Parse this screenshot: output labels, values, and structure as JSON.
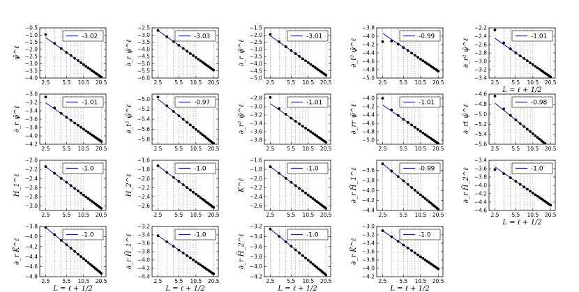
{
  "figure": {
    "xlabel": "L = ℓ + 1/2",
    "legend_position": "upper-right",
    "colors": {
      "fit_line": "#1a1acc",
      "points": "#000000",
      "grid": "#555555"
    },
    "xticks": [
      2.5,
      5.5,
      10.5,
      20.5
    ],
    "vgrid_x": [
      2.5,
      3.5,
      4.5,
      5.5,
      6.5,
      7.5,
      8.5,
      9.5,
      10.5,
      20.5
    ],
    "x_scale": "log"
  },
  "chart_data": [
    {
      "type": "scatter",
      "ylabel": "ψ̄^ℓ",
      "legend": "-3.02",
      "ylim": [
        -4.0,
        -0.5
      ],
      "yticks": [
        -0.5,
        -1.0,
        -1.5,
        -2.0,
        -2.5,
        -3.0,
        -3.5,
        -4.0
      ],
      "ytick_labels": [
        "−0.5",
        "−1.0",
        "−1.5",
        "−2.0",
        "−2.5",
        "−3.0",
        "−3.5",
        "−4.0"
      ],
      "intercept": -1.18,
      "offset": 0.22,
      "decay": 1.6,
      "slope": -3.02,
      "xlabel_shown": false
    },
    {
      "type": "scatter",
      "ylabel": "∂_r ψ̄^ℓ",
      "legend": "-3.03",
      "ylim": [
        -6.0,
        -2.5
      ],
      "yticks": [
        -2.5,
        -3.0,
        -3.5,
        -4.0,
        -4.5,
        -5.0,
        -5.5,
        -6.0
      ],
      "ytick_labels": [
        "−2.5",
        "−3.0",
        "−3.5",
        "−4.0",
        "−4.5",
        "−5.0",
        "−5.5",
        "−6.0"
      ],
      "intercept": -2.68,
      "offset": 0.0,
      "decay": 1.6,
      "slope": -3.03,
      "xlabel_shown": false
    },
    {
      "type": "scatter",
      "ylabel": "∂_r ψ̄^ℓ",
      "legend": "-3.01",
      "ylim": [
        -5.0,
        -1.5
      ],
      "yticks": [
        -1.5,
        -2.0,
        -2.5,
        -3.0,
        -3.5,
        -4.0,
        -4.5,
        -5.0
      ],
      "ytick_labels": [
        "−1.5",
        "−2.0",
        "−2.5",
        "−3.0",
        "−3.5",
        "−4.0",
        "−4.5",
        "−5.0"
      ],
      "intercept": -2.05,
      "offset": 0.1,
      "decay": 1.6,
      "slope": -3.01,
      "xlabel_shown": false
    },
    {
      "type": "scatter",
      "ylabel": "∂_t² ψ̄^ℓ",
      "legend": "-0.99",
      "ylim": [
        -5.0,
        -3.8
      ],
      "yticks": [
        -3.8,
        -4.0,
        -4.2,
        -4.4,
        -4.6,
        -4.8,
        -5.0
      ],
      "ytick_labels": [
        "−3.8",
        "−4.0",
        "−4.2",
        "−4.4",
        "−4.6",
        "−4.8",
        "−5.0"
      ],
      "intercept": -3.93,
      "offset": -0.2,
      "decay": 1.6,
      "slope": -0.99,
      "xlabel_shown": false
    },
    {
      "type": "scatter",
      "ylabel": "∂_r² ψ̄^ℓ",
      "legend": "-1.01",
      "ylim": [
        -3.4,
        -2.2
      ],
      "yticks": [
        -2.2,
        -2.4,
        -2.6,
        -2.8,
        -3.0,
        -3.2,
        -3.4
      ],
      "ytick_labels": [
        "−2.2",
        "−2.4",
        "−2.6",
        "−2.8",
        "−3.0",
        "−3.2",
        "−3.4"
      ],
      "intercept": -2.45,
      "offset": 0.2,
      "decay": 1.6,
      "slope": -1.01,
      "xlabel_shown": true
    },
    {
      "type": "scatter",
      "ylabel": "∂_r ψ̄^ℓ",
      "legend": "-1.01",
      "ylim": [
        -4.2,
        -3.0
      ],
      "yticks": [
        -3.0,
        -3.2,
        -3.4,
        -3.6,
        -3.8,
        -4.0,
        -4.2
      ],
      "ytick_labels": [
        "−3.0",
        "−3.2",
        "−3.4",
        "−3.6",
        "−3.8",
        "−4.0",
        "−4.2"
      ],
      "intercept": -3.21,
      "offset": 0.14,
      "decay": 1.6,
      "slope": -1.01,
      "xlabel_shown": false
    },
    {
      "type": "scatter",
      "ylabel": "∂_t² ψ̄^ℓ",
      "legend": "-0.97",
      "ylim": [
        -5.9,
        -4.9
      ],
      "yticks": [
        -5.0,
        -5.2,
        -5.4,
        -5.6,
        -5.8
      ],
      "ytick_labels": [
        "−5.0",
        "−5.2",
        "−5.4",
        "−5.6",
        "−5.8"
      ],
      "intercept": -5.0,
      "offset": 0.04,
      "decay": 1.6,
      "slope": -0.97,
      "xlabel_shown": false
    },
    {
      "type": "scatter",
      "ylabel": "∂_r² ψ̄^ℓ",
      "legend": "-1.01",
      "ylim": [
        -3.9,
        -2.7
      ],
      "yticks": [
        -2.8,
        -3.0,
        -3.2,
        -3.4,
        -3.6,
        -3.8
      ],
      "ytick_labels": [
        "−2.8",
        "−3.0",
        "−3.2",
        "−3.4",
        "−3.6",
        "−3.8"
      ],
      "intercept": -2.93,
      "offset": 0.15,
      "decay": 1.6,
      "slope": -1.01,
      "xlabel_shown": false
    },
    {
      "type": "scatter",
      "ylabel": "∂_rr ψ̄^ℓ",
      "legend": "-1.01",
      "ylim": [
        -5.1,
        -3.9
      ],
      "yticks": [
        -4.0,
        -4.2,
        -4.4,
        -4.6,
        -4.8,
        -5.0
      ],
      "ytick_labels": [
        "−4.0",
        "−4.2",
        "−4.4",
        "−4.6",
        "−4.8",
        "−5.0"
      ],
      "intercept": -4.16,
      "offset": 0.16,
      "decay": 1.6,
      "slope": -1.01,
      "xlabel_shown": false
    },
    {
      "type": "scatter",
      "ylabel": "∂_rt ψ̄^ℓ",
      "legend": "-0.98",
      "ylim": [
        -5.6,
        -4.6
      ],
      "yticks": [
        -4.6,
        -4.8,
        -5.0,
        -5.2,
        -5.4,
        -5.6
      ],
      "ytick_labels": [
        "−4.6",
        "−4.8",
        "−5.0",
        "−5.2",
        "−5.4",
        "−5.6"
      ],
      "intercept": -4.78,
      "offset": 0.14,
      "decay": 1.6,
      "slope": -0.98,
      "xlabel_shown": false
    },
    {
      "type": "scatter",
      "ylabel": "H_1^ℓ",
      "legend": "-1.0",
      "ylim": [
        -3.1,
        -2.0
      ],
      "yticks": [
        -2.0,
        -2.2,
        -2.4,
        -2.6,
        -2.8,
        -3.0
      ],
      "ytick_labels": [
        "−2.0",
        "−2.2",
        "−2.4",
        "−2.6",
        "−2.8",
        "−3.0"
      ],
      "intercept": -2.14,
      "offset": 0.0,
      "decay": 1.6,
      "slope": -1.0,
      "xlabel_shown": false
    },
    {
      "type": "scatter",
      "ylabel": "H_2^ℓ",
      "legend": "-1.0",
      "ylim": [
        -2.7,
        -1.6
      ],
      "yticks": [
        -1.6,
        -1.8,
        -2.0,
        -2.2,
        -2.4,
        -2.6
      ],
      "ytick_labels": [
        "−1.6",
        "−1.8",
        "−2.0",
        "−2.2",
        "−2.4",
        "−2.6"
      ],
      "intercept": -1.72,
      "offset": 0.0,
      "decay": 1.6,
      "slope": -1.0,
      "xlabel_shown": false
    },
    {
      "type": "scatter",
      "ylabel": "K^ℓ",
      "legend": "-1.0",
      "ylim": [
        -2.7,
        -1.6
      ],
      "yticks": [
        -1.6,
        -1.8,
        -2.0,
        -2.2,
        -2.4,
        -2.6
      ],
      "ytick_labels": [
        "−1.6",
        "−1.8",
        "−2.0",
        "−2.2",
        "−2.4",
        "−2.6"
      ],
      "intercept": -1.74,
      "offset": 0.0,
      "decay": 1.6,
      "slope": -1.0,
      "xlabel_shown": false
    },
    {
      "type": "scatter",
      "ylabel": "∂_r H̄_1^ℓ",
      "legend": "-0.99",
      "ylim": [
        -4.4,
        -3.4
      ],
      "yticks": [
        -3.6,
        -3.8,
        -4.0,
        -4.2,
        -4.4
      ],
      "ytick_labels": [
        "−3.6",
        "−3.8",
        "−4.0",
        "−4.2",
        "−4.4"
      ],
      "intercept": -3.47,
      "offset": 0.0,
      "decay": 1.6,
      "slope": -0.99,
      "xlabel_shown": false
    },
    {
      "type": "scatter",
      "ylabel": "∂_r H̄_2^ℓ",
      "legend": "-1.0",
      "ylim": [
        -4.6,
        -3.4
      ],
      "yticks": [
        -3.4,
        -3.6,
        -3.8,
        -4.0,
        -4.2,
        -4.4,
        -4.6
      ],
      "ytick_labels": [
        "−3.4",
        "−3.6",
        "−3.8",
        "−4.0",
        "−4.2",
        "−4.4",
        "−4.6"
      ],
      "intercept": -3.56,
      "offset": -0.06,
      "decay": 1.6,
      "slope": -1.0,
      "xlabel_shown": true
    },
    {
      "type": "scatter",
      "ylabel": "∂_r K̄^ℓ",
      "legend": "-1.0",
      "ylim": [
        -4.8,
        -3.8
      ],
      "yticks": [
        -3.8,
        -4.0,
        -4.2,
        -4.4,
        -4.6,
        -4.8
      ],
      "ytick_labels": [
        "−3.8",
        "−4.0",
        "−4.2",
        "−4.4",
        "−4.6",
        "−4.8"
      ],
      "intercept": -3.82,
      "offset": 0.0,
      "decay": 1.6,
      "slope": -1.0,
      "xlabel_shown": true
    },
    {
      "type": "scatter",
      "ylabel": "∂_r H̄_1^ℓ",
      "legend": "-1.0",
      "ylim": [
        -4.4,
        -3.2
      ],
      "yticks": [
        -3.2,
        -3.4,
        -3.6,
        -3.8,
        -4.0,
        -4.2,
        -4.4
      ],
      "ytick_labels": [
        "−3.2",
        "−3.4",
        "−3.6",
        "−3.8",
        "−4.0",
        "−4.2",
        "−4.4"
      ],
      "intercept": -3.42,
      "offset": 0.0,
      "decay": 1.6,
      "slope": -1.0,
      "xlabel_shown": true
    },
    {
      "type": "scatter",
      "ylabel": "∂_r H̄_2^ℓ",
      "legend": "-1.0",
      "ylim": [
        -4.2,
        -3.2
      ],
      "yticks": [
        -3.2,
        -3.4,
        -3.6,
        -3.8,
        -4.0,
        -4.2
      ],
      "ytick_labels": [
        "−3.2",
        "−3.4",
        "−3.6",
        "−3.8",
        "−4.0",
        "−4.2"
      ],
      "intercept": -3.25,
      "offset": 0.0,
      "decay": 1.6,
      "slope": -1.0,
      "xlabel_shown": true
    },
    {
      "type": "scatter",
      "ylabel": "∂_r K̄^ℓ",
      "legend": "-1.0",
      "ylim": [
        -4.2,
        -3.0
      ],
      "yticks": [
        -3.0,
        -3.2,
        -3.4,
        -3.6,
        -3.8,
        -4.0,
        -4.2
      ],
      "ytick_labels": [
        "−3.0",
        "−3.2",
        "−3.4",
        "−3.6",
        "−3.8",
        "−4.0",
        "−4.2"
      ],
      "intercept": -3.1,
      "offset": 0.0,
      "decay": 1.6,
      "slope": -1.0,
      "xlabel_shown": true
    }
  ]
}
